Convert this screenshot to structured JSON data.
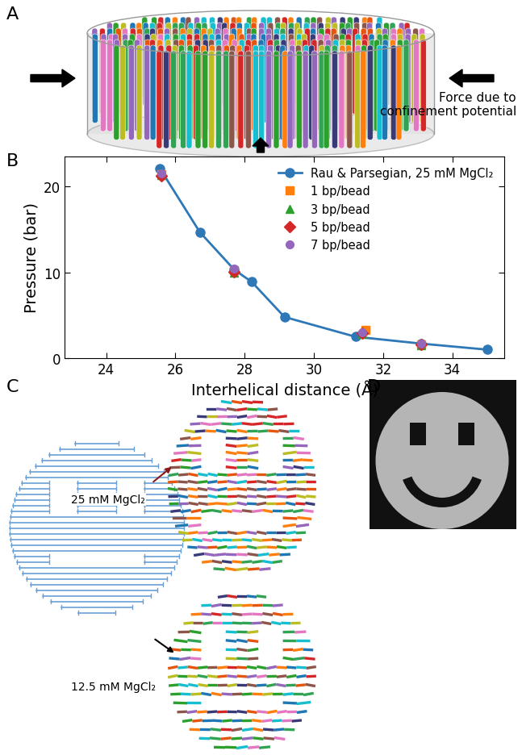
{
  "panel_labels": [
    "A",
    "B",
    "C",
    "D"
  ],
  "panel_a": {
    "annotation": "Force due to\nconfinement potential"
  },
  "panel_c": {
    "conditions": [
      "25 mM MgCl₂",
      "12.5 mM MgCl₂"
    ]
  },
  "chart_data": {
    "type": "line",
    "x_label": "Interhelical distance (Å)",
    "y_label": "Pressure (bar)",
    "xlim": [
      22.8,
      35.5
    ],
    "xticks": [
      24,
      26,
      28,
      30,
      32,
      34
    ],
    "ylim": [
      0,
      23.5
    ],
    "yticks": [
      0,
      10,
      20
    ],
    "grid": false,
    "legend": "upper right",
    "series": [
      {
        "name": "Rau & Parsegian, 25 mM MgCl₂",
        "color": "#2e78b7",
        "marker": "o",
        "line_style": "solid",
        "type": "line",
        "x": [
          25.55,
          26.7,
          27.7,
          28.2,
          29.15,
          31.2,
          33.1,
          35.0
        ],
        "values": [
          22.1,
          14.7,
          10.3,
          8.9,
          4.8,
          2.5,
          1.7,
          1.0
        ]
      },
      {
        "name": "1 bp/bead",
        "color": "#ff7f0e",
        "marker": "s",
        "line_style": "none",
        "type": "scatter",
        "x": [
          25.6,
          27.7,
          31.5,
          33.1
        ],
        "values": [
          21.4,
          10.2,
          3.3,
          1.6
        ]
      },
      {
        "name": "3 bp/bead",
        "color": "#2ca02c",
        "marker": "^",
        "line_style": "none",
        "type": "scatter",
        "x": [
          25.6,
          27.7,
          31.4,
          33.1
        ],
        "values": [
          21.3,
          10.0,
          2.8,
          1.5
        ]
      },
      {
        "name": "5 bp/bead",
        "color": "#d62728",
        "marker": "D",
        "line_style": "none",
        "type": "scatter",
        "x": [
          25.6,
          27.7,
          31.4,
          33.1
        ],
        "values": [
          21.2,
          10.1,
          2.9,
          1.6
        ]
      },
      {
        "name": "7 bp/bead",
        "color": "#9467bd",
        "marker": "o",
        "line_style": "none",
        "type": "scatter",
        "x": [
          25.6,
          27.7,
          31.4,
          33.1
        ],
        "values": [
          21.5,
          10.4,
          3.0,
          1.7
        ]
      }
    ]
  }
}
